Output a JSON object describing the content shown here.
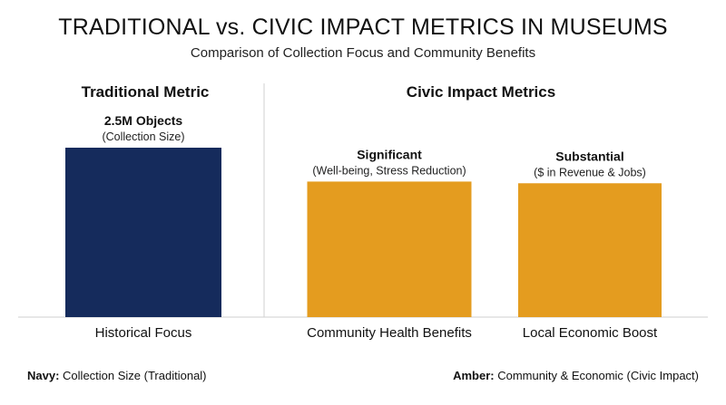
{
  "chart_data": {
    "type": "bar",
    "title": "TRADITIONAL vs. CIVIC IMPACT METRICS IN MUSEUMS",
    "subtitle": "Comparison of Collection Focus and Community Benefits",
    "groups": [
      {
        "label": "Traditional Metric",
        "categories": [
          "Historical Focus"
        ]
      },
      {
        "label": "Civic Impact Metrics",
        "categories": [
          "Community Health Benefits",
          "Local Economic Boost"
        ]
      }
    ],
    "categories": [
      "Historical Focus",
      "Community Health Benefits",
      "Local Economic Boost"
    ],
    "values": [
      100,
      80,
      79
    ],
    "value_scale": "relative (no numeric axis shown)",
    "bar_labels": [
      {
        "main": "2.5M Objects",
        "sub": "(Collection Size)"
      },
      {
        "main": "Significant",
        "sub": "(Well-being, Stress Reduction)"
      },
      {
        "main": "Substantial",
        "sub": "($ in Revenue & Jobs)"
      }
    ],
    "bar_colors": [
      "#152b5c",
      "#e49c1f",
      "#e49c1f"
    ],
    "ylim": [
      0,
      100
    ],
    "grid": false,
    "legend": [
      {
        "key": "Navy:",
        "text": "Collection Size (Traditional)",
        "color": "#152b5c",
        "placement": "bottom-left"
      },
      {
        "key": "Amber:",
        "text": "Community & Economic (Civic Impact)",
        "color": "#e49c1f",
        "placement": "bottom-right"
      }
    ]
  }
}
